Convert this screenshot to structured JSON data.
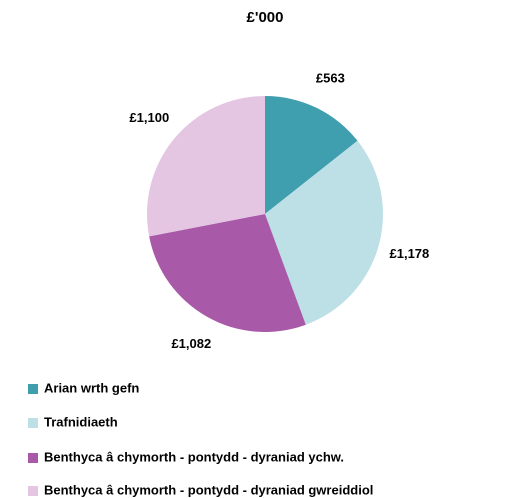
{
  "chart_data": {
    "type": "pie",
    "title": "£'000",
    "categories": [
      "Arian wrth gefn",
      "Trafnidiaeth",
      "Benthyca â chymorth - pontydd - dyraniad ychw.",
      "Benthyca â chymorth - pontydd - dyraniad gwreiddiol"
    ],
    "values": [
      563,
      1178,
      1082,
      1100
    ],
    "value_labels": [
      "£563",
      "£1,178",
      "£1,082",
      "£1,100"
    ],
    "colors": [
      "#3f9faf",
      "#bde0e6",
      "#a85aa8",
      "#e4c6e2"
    ],
    "legend": "bottom"
  }
}
